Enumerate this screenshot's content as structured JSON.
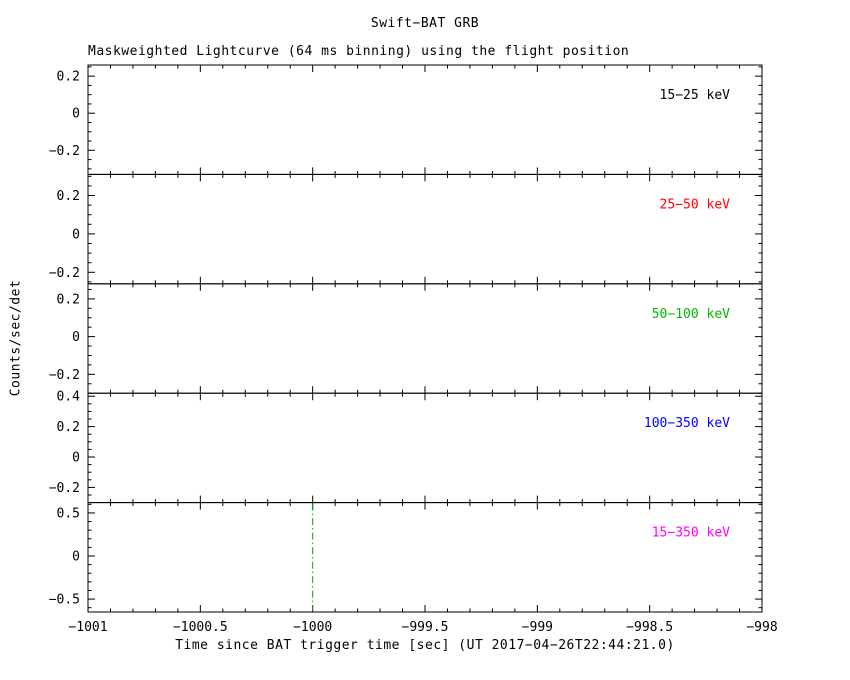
{
  "chart_data": {
    "type": "line",
    "title": "Swift−BAT GRB",
    "subtitle": "Maskweighted Lightcurve (64 ms binning) using the flight position",
    "xlabel": "Time since BAT trigger time [sec] (UT 2017−04−26T22:44:21.0)",
    "ylabel": "Counts/sec/det",
    "xlim": [
      -1001,
      -998
    ],
    "x_major_ticks": [
      -1001,
      -1000.5,
      -1000,
      -999.5,
      -999,
      -998.5,
      -998
    ],
    "x_minor_step": 0.1,
    "grid": false,
    "legend_position": "inside-top-right-per-panel",
    "panels": [
      {
        "label": "15−25 keV",
        "color": "#000000",
        "ylim": [
          -0.33,
          0.26
        ],
        "yticks": [
          -0.2,
          0,
          0.2
        ],
        "y_minor_step": 0.05,
        "series": []
      },
      {
        "label": "25−50 keV",
        "color": "#ff0000",
        "ylim": [
          -0.26,
          0.31
        ],
        "yticks": [
          -0.2,
          0,
          0.2
        ],
        "y_minor_step": 0.05,
        "series": []
      },
      {
        "label": "50−100 keV",
        "color": "#00bb00",
        "ylim": [
          -0.3,
          0.28
        ],
        "yticks": [
          -0.2,
          0,
          0.2
        ],
        "y_minor_step": 0.05,
        "series": []
      },
      {
        "label": "100−350 keV",
        "color": "#0000ff",
        "ylim": [
          -0.3,
          0.42
        ],
        "yticks": [
          -0.2,
          0,
          0.2,
          0.4
        ],
        "y_minor_step": 0.05,
        "series": []
      },
      {
        "label": "15−350 keV",
        "color": "#ff00ff",
        "ylim": [
          -0.65,
          0.62
        ],
        "yticks": [
          -0.5,
          0,
          0.5
        ],
        "y_minor_step": 0.1,
        "series": [],
        "vline": {
          "x": -1000,
          "color": "#00aa00",
          "style": "dash-dot"
        }
      }
    ]
  }
}
